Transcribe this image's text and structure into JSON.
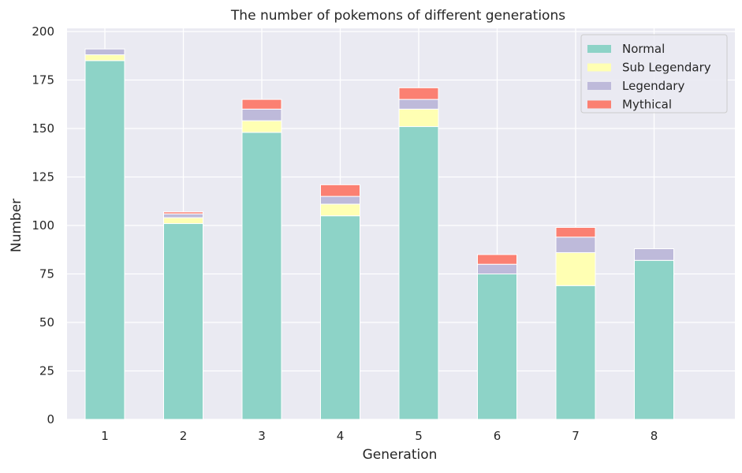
{
  "chart_data": {
    "type": "bar",
    "stacked": true,
    "title": "The number of pokemons of different generations",
    "xlabel": "Generation",
    "ylabel": "Number",
    "categories": [
      "1",
      "2",
      "3",
      "4",
      "5",
      "6",
      "7",
      "8"
    ],
    "ylim": [
      0,
      200
    ],
    "yticks": [
      "0",
      "25",
      "50",
      "75",
      "100",
      "125",
      "150",
      "175",
      "200"
    ],
    "grid": true,
    "legend_position": "top-right",
    "series": [
      {
        "name": "Normal",
        "color": "#8dd3c7",
        "values": [
          185,
          101,
          148,
          105,
          151,
          75,
          69,
          82
        ]
      },
      {
        "name": "Sub Legendary",
        "color": "#ffffb3",
        "values": [
          3,
          3,
          6,
          6,
          9,
          0,
          17,
          0
        ]
      },
      {
        "name": "Legendary",
        "color": "#bebada",
        "values": [
          3,
          2,
          6,
          4,
          5,
          5,
          8,
          6
        ]
      },
      {
        "name": "Mythical",
        "color": "#fb8072",
        "values": [
          0,
          1,
          5,
          6,
          6,
          5,
          5,
          0
        ]
      }
    ]
  }
}
